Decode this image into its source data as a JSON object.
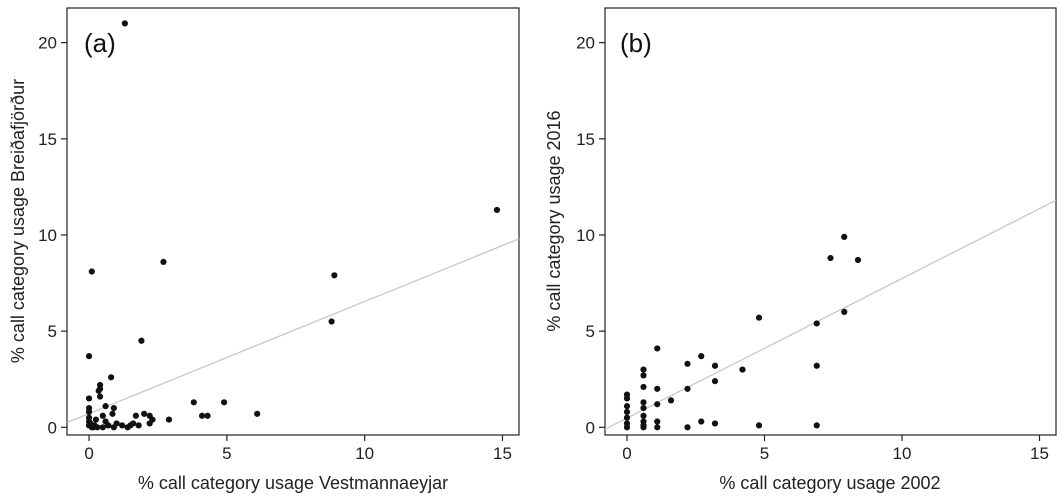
{
  "chart_data": [
    {
      "type": "scatter",
      "panel_label": "(a)",
      "xlabel": "% call category usage Vestmannaeyjar",
      "ylabel": "% call category usage Breiðafjörður",
      "xlim": [
        -0.8,
        15.6
      ],
      "ylim": [
        -0.4,
        21.8
      ],
      "xticks": [
        0,
        5,
        10,
        15
      ],
      "yticks": [
        0,
        5,
        10,
        15,
        20
      ],
      "xtick_labels": [
        "0",
        "5",
        "10",
        "15"
      ],
      "ytick_labels": [
        "0",
        "5",
        "10",
        "15",
        "20"
      ],
      "grid": false,
      "trendline": {
        "x": [
          -0.8,
          15.6
        ],
        "y": [
          0.25,
          9.8
        ]
      },
      "points": [
        {
          "x": 1.3,
          "y": 21.0
        },
        {
          "x": 14.8,
          "y": 11.3
        },
        {
          "x": 0.1,
          "y": 8.1
        },
        {
          "x": 2.7,
          "y": 8.6
        },
        {
          "x": 8.9,
          "y": 7.9
        },
        {
          "x": 8.8,
          "y": 5.5
        },
        {
          "x": 1.9,
          "y": 4.5
        },
        {
          "x": 0.0,
          "y": 3.7
        },
        {
          "x": 0.8,
          "y": 2.6
        },
        {
          "x": 0.4,
          "y": 2.2
        },
        {
          "x": 0.4,
          "y": 2.0
        },
        {
          "x": 0.35,
          "y": 1.9
        },
        {
          "x": 0.4,
          "y": 1.6
        },
        {
          "x": 0.0,
          "y": 1.5
        },
        {
          "x": 0.0,
          "y": 1.0
        },
        {
          "x": 0.0,
          "y": 0.8
        },
        {
          "x": 0.6,
          "y": 1.1
        },
        {
          "x": 0.9,
          "y": 1.0
        },
        {
          "x": 0.85,
          "y": 0.7
        },
        {
          "x": 0.5,
          "y": 0.6
        },
        {
          "x": 0.0,
          "y": 0.5
        },
        {
          "x": 0.0,
          "y": 0.3
        },
        {
          "x": 0.0,
          "y": 0.1
        },
        {
          "x": 0.2,
          "y": 0.1
        },
        {
          "x": 0.3,
          "y": 0.0
        },
        {
          "x": 0.1,
          "y": 0.0
        },
        {
          "x": 0.5,
          "y": 0.0
        },
        {
          "x": 0.7,
          "y": 0.1
        },
        {
          "x": 0.6,
          "y": 0.3
        },
        {
          "x": 0.9,
          "y": 0.0
        },
        {
          "x": 1.0,
          "y": 0.2
        },
        {
          "x": 1.2,
          "y": 0.1
        },
        {
          "x": 1.4,
          "y": 0.0
        },
        {
          "x": 1.6,
          "y": 0.2
        },
        {
          "x": 1.8,
          "y": 0.1
        },
        {
          "x": 1.7,
          "y": 0.6
        },
        {
          "x": 2.0,
          "y": 0.7
        },
        {
          "x": 2.2,
          "y": 0.6
        },
        {
          "x": 2.3,
          "y": 0.4
        },
        {
          "x": 2.2,
          "y": 0.2
        },
        {
          "x": 2.9,
          "y": 0.4
        },
        {
          "x": 3.8,
          "y": 1.3
        },
        {
          "x": 4.1,
          "y": 0.6
        },
        {
          "x": 4.3,
          "y": 0.6
        },
        {
          "x": 4.9,
          "y": 1.3
        },
        {
          "x": 6.1,
          "y": 0.7
        },
        {
          "x": 0.05,
          "y": 0.2
        },
        {
          "x": 0.25,
          "y": 0.4
        },
        {
          "x": 1.5,
          "y": 0.1
        },
        {
          "x": 0.15,
          "y": 0.0
        }
      ]
    },
    {
      "type": "scatter",
      "panel_label": "(b)",
      "xlabel": "% call category usage 2002",
      "ylabel": "% call category usage 2016",
      "xlim": [
        -0.8,
        15.6
      ],
      "ylim": [
        -0.4,
        21.8
      ],
      "xticks": [
        0,
        5,
        10,
        15
      ],
      "yticks": [
        0,
        5,
        10,
        15,
        20
      ],
      "xtick_labels": [
        "0",
        "5",
        "10",
        "15"
      ],
      "ytick_labels": [
        "0",
        "5",
        "10",
        "15",
        "20"
      ],
      "grid": false,
      "trendline": {
        "x": [
          -0.8,
          15.6
        ],
        "y": [
          -0.1,
          11.8
        ]
      },
      "points": [
        {
          "x": 7.9,
          "y": 9.9
        },
        {
          "x": 7.4,
          "y": 8.8
        },
        {
          "x": 8.4,
          "y": 8.7
        },
        {
          "x": 7.9,
          "y": 6.0
        },
        {
          "x": 4.8,
          "y": 5.7
        },
        {
          "x": 6.9,
          "y": 5.4
        },
        {
          "x": 1.1,
          "y": 4.1
        },
        {
          "x": 2.7,
          "y": 3.7
        },
        {
          "x": 6.9,
          "y": 3.2
        },
        {
          "x": 2.2,
          "y": 3.3
        },
        {
          "x": 3.2,
          "y": 3.2
        },
        {
          "x": 4.2,
          "y": 3.0
        },
        {
          "x": 0.6,
          "y": 3.0
        },
        {
          "x": 0.6,
          "y": 2.7
        },
        {
          "x": 3.2,
          "y": 2.4
        },
        {
          "x": 0.6,
          "y": 2.1
        },
        {
          "x": 1.1,
          "y": 2.0
        },
        {
          "x": 2.2,
          "y": 2.0
        },
        {
          "x": 0.0,
          "y": 1.7
        },
        {
          "x": 0.0,
          "y": 1.5
        },
        {
          "x": 1.6,
          "y": 1.4
        },
        {
          "x": 0.6,
          "y": 1.3
        },
        {
          "x": 0.0,
          "y": 1.1
        },
        {
          "x": 0.6,
          "y": 1.0
        },
        {
          "x": 1.1,
          "y": 1.2
        },
        {
          "x": 0.0,
          "y": 0.8
        },
        {
          "x": 0.6,
          "y": 0.6
        },
        {
          "x": 0.0,
          "y": 0.5
        },
        {
          "x": 0.6,
          "y": 0.3
        },
        {
          "x": 1.1,
          "y": 0.3
        },
        {
          "x": 2.7,
          "y": 0.3
        },
        {
          "x": 3.2,
          "y": 0.2
        },
        {
          "x": 0.0,
          "y": 0.2
        },
        {
          "x": 0.6,
          "y": 0.1
        },
        {
          "x": 0.0,
          "y": 0.0
        },
        {
          "x": 2.2,
          "y": 0.0
        },
        {
          "x": 4.8,
          "y": 0.1
        },
        {
          "x": 6.9,
          "y": 0.1
        },
        {
          "x": 0.6,
          "y": 0.0
        },
        {
          "x": 1.1,
          "y": 0.0
        }
      ]
    }
  ],
  "colors": {
    "point": "#111111",
    "trendline": "#c8c8c8",
    "frame": "#222222",
    "text": "#222222"
  }
}
